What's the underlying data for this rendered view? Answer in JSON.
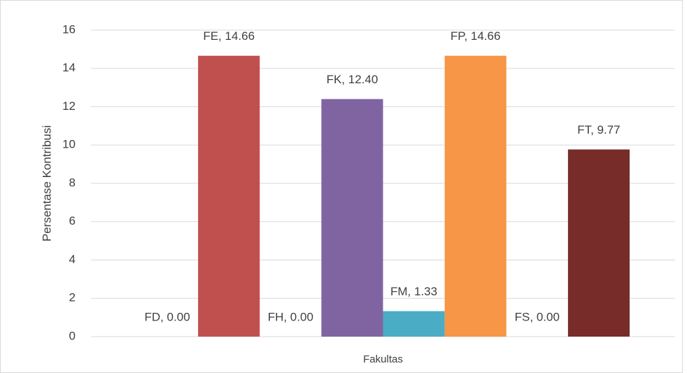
{
  "chart_data": {
    "type": "bar",
    "ylabel": "Persentase Kontribusi",
    "categories": [
      "Fakultas"
    ],
    "series": [
      {
        "name": "FD",
        "color": "#4472c4",
        "values": [
          0
        ],
        "value_labels": [
          "FD, 0.00"
        ]
      },
      {
        "name": "FE",
        "color": "#c0504d",
        "values": [
          14.66
        ],
        "value_labels": [
          "FE, 14.66"
        ]
      },
      {
        "name": "FH",
        "color": "#9bbb59",
        "values": [
          0
        ],
        "value_labels": [
          "FH, 0.00"
        ]
      },
      {
        "name": "FK",
        "color": "#8064a2",
        "values": [
          12.4
        ],
        "value_labels": [
          "FK, 12.40"
        ]
      },
      {
        "name": "FM",
        "color": "#4bacc6",
        "values": [
          1.33
        ],
        "value_labels": [
          "FM, 1.33"
        ]
      },
      {
        "name": "FP",
        "color": "#f79646",
        "values": [
          14.66
        ],
        "value_labels": [
          "FP, 14.66"
        ]
      },
      {
        "name": "FS",
        "color": "#2c4d75",
        "values": [
          0
        ],
        "value_labels": [
          "FS, 0.00"
        ]
      },
      {
        "name": "FT",
        "color": "#772c2a",
        "values": [
          9.77
        ],
        "value_labels": [
          "FT, 9.77"
        ]
      }
    ],
    "ylim": [
      0,
      16
    ],
    "yticks": [
      0,
      2,
      4,
      6,
      8,
      10,
      12,
      14,
      16
    ],
    "grid": true
  }
}
